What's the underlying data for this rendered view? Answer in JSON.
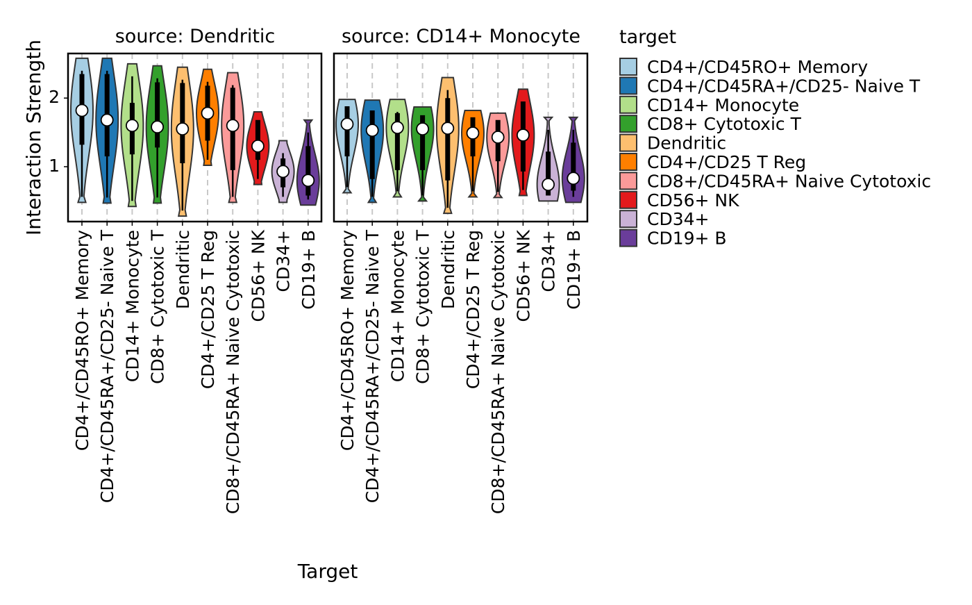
{
  "chart_data": {
    "type": "violin",
    "ylabel": "Interaction Strength",
    "xlabel": "Target",
    "ylim": [
      0.2,
      2.65
    ],
    "yticks": [
      1,
      2
    ],
    "grid": "vertical dashed at each category",
    "categories": [
      "CD4+/CD45RO+ Memory",
      "CD4+/CD45RA+/CD25- Naive T",
      "CD14+ Monocyte",
      "CD8+ Cytotoxic T",
      "Dendritic",
      "CD4+/CD25 T Reg",
      "CD8+/CD45RA+ Naive Cytotoxic",
      "CD56+ NK",
      "CD34+",
      "CD19+ B"
    ],
    "colors": [
      "#a6cee3",
      "#1f78b4",
      "#b2df8a",
      "#33a02c",
      "#fdbf6f",
      "#ff7f00",
      "#fb9a99",
      "#e31a1c",
      "#cab2d6",
      "#6a3d9a"
    ],
    "legend": {
      "title": "target",
      "position": "right",
      "entries": [
        "CD4+/CD45RO+ Memory",
        "CD4+/CD45RA+/CD25- Naive T",
        "CD14+ Monocyte",
        "CD8+ Cytotoxic T",
        "Dendritic",
        "CD4+/CD25 T Reg",
        "CD8+/CD45RA+ Naive Cytotoxic",
        "CD56+ NK",
        "CD34+",
        "CD19+ B"
      ]
    },
    "panels": [
      {
        "title": "source: Dendritic",
        "violins": [
          {
            "min": 0.48,
            "max": 2.58,
            "q1": 1.32,
            "q3": 2.35,
            "median": 1.82
          },
          {
            "min": 0.47,
            "max": 2.58,
            "q1": 1.15,
            "q3": 2.35,
            "median": 1.68
          },
          {
            "min": 0.42,
            "max": 2.5,
            "q1": 1.18,
            "q3": 1.93,
            "median": 1.6
          },
          {
            "min": 0.47,
            "max": 2.47,
            "q1": 1.28,
            "q3": 2.23,
            "median": 1.58
          },
          {
            "min": 0.28,
            "max": 2.45,
            "q1": 1.05,
            "q3": 2.22,
            "median": 1.55
          },
          {
            "min": 1.02,
            "max": 2.42,
            "q1": 1.38,
            "q3": 2.18,
            "median": 1.78
          },
          {
            "min": 0.48,
            "max": 2.37,
            "q1": 0.95,
            "q3": 2.15,
            "median": 1.6
          },
          {
            "min": 0.74,
            "max": 1.8,
            "q1": 1.1,
            "q3": 1.68,
            "median": 1.3
          },
          {
            "min": 0.48,
            "max": 1.38,
            "q1": 0.7,
            "q3": 1.12,
            "median": 0.93
          },
          {
            "min": 0.44,
            "max": 1.68,
            "q1": 0.58,
            "q3": 1.3,
            "median": 0.8
          }
        ]
      },
      {
        "title": "source: CD14+ Monocyte",
        "violins": [
          {
            "min": 0.62,
            "max": 1.98,
            "q1": 1.15,
            "q3": 1.88,
            "median": 1.62
          },
          {
            "min": 0.48,
            "max": 1.97,
            "q1": 0.82,
            "q3": 1.82,
            "median": 1.53
          },
          {
            "min": 0.56,
            "max": 1.98,
            "q1": 0.95,
            "q3": 1.78,
            "median": 1.57
          },
          {
            "min": 0.5,
            "max": 1.87,
            "q1": 0.95,
            "q3": 1.75,
            "median": 1.55
          },
          {
            "min": 0.32,
            "max": 2.3,
            "q1": 0.8,
            "q3": 2.0,
            "median": 1.56
          },
          {
            "min": 0.56,
            "max": 1.82,
            "q1": 1.15,
            "q3": 1.72,
            "median": 1.49
          },
          {
            "min": 0.55,
            "max": 1.78,
            "q1": 1.08,
            "q3": 1.68,
            "median": 1.43
          },
          {
            "min": 0.58,
            "max": 2.13,
            "q1": 0.93,
            "q3": 1.95,
            "median": 1.46
          },
          {
            "min": 0.5,
            "max": 1.72,
            "q1": 0.58,
            "q3": 1.22,
            "median": 0.74
          },
          {
            "min": 0.48,
            "max": 1.72,
            "q1": 0.65,
            "q3": 1.35,
            "median": 0.83
          }
        ]
      }
    ]
  }
}
